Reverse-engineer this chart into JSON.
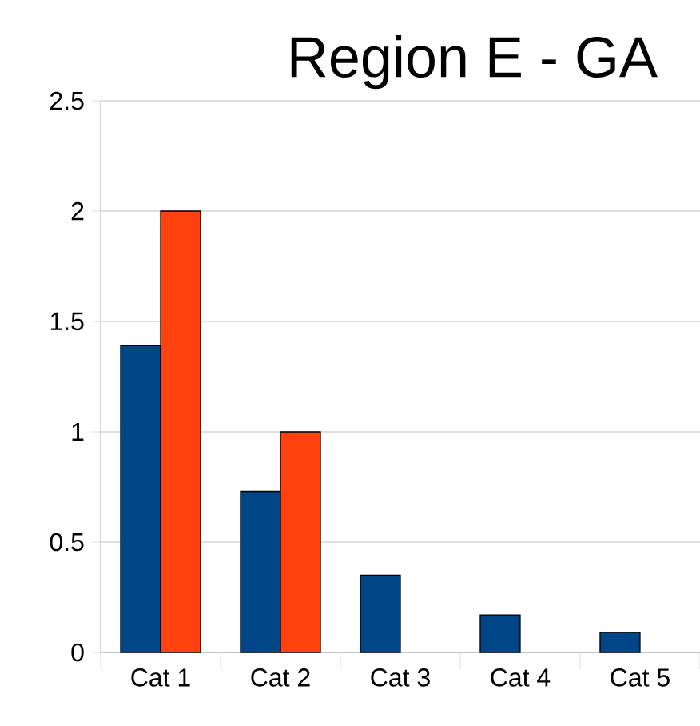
{
  "chart_data": {
    "type": "bar",
    "title": "Region E - GA",
    "categories": [
      "Cat 1",
      "Cat 2",
      "Cat 3",
      "Cat 4",
      "Cat 5"
    ],
    "series": [
      {
        "color": "#004586",
        "values": [
          1.39,
          0.73,
          0.35,
          0.17,
          0.09
        ]
      },
      {
        "color": "#ff420e",
        "values": [
          2,
          1,
          null,
          null,
          null
        ]
      }
    ],
    "ylim": [
      0,
      2.5
    ],
    "yticks": [
      0,
      0.5,
      1,
      1.5,
      2,
      2.5
    ],
    "grid": "y"
  }
}
